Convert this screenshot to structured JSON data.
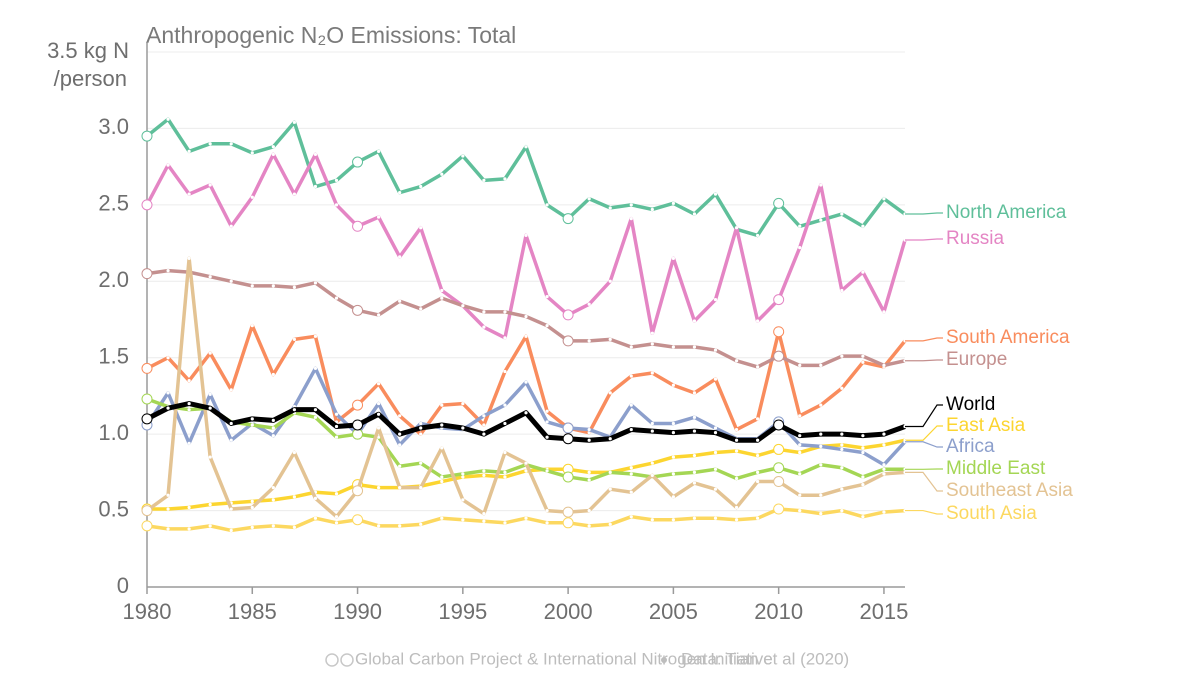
{
  "chart_data": {
    "type": "line",
    "title": "Anthropogenic N₂O Emissions: Total",
    "y_label": "/person",
    "footer_source": "Global Carbon Project & International Nitrogen Initiative",
    "footer_data": "Data: Tian et al (2020)",
    "x": [
      1980,
      1981,
      1982,
      1983,
      1984,
      1985,
      1986,
      1987,
      1988,
      1989,
      1990,
      1991,
      1992,
      1993,
      1994,
      1995,
      1996,
      1997,
      1998,
      1999,
      2000,
      2001,
      2002,
      2003,
      2004,
      2005,
      2006,
      2007,
      2008,
      2009,
      2010,
      2011,
      2012,
      2013,
      2014,
      2015,
      2016
    ],
    "xlim": [
      1980,
      2016
    ],
    "xticks": [
      1980,
      1985,
      1990,
      1995,
      2000,
      2005,
      2010,
      2015
    ],
    "ylim": [
      0,
      3.5
    ],
    "yticks": [
      0,
      0.5,
      {
        "value": 1,
        "label": "1.0"
      },
      1.5,
      {
        "value": 2,
        "label": "2.0"
      },
      2.5,
      {
        "value": 3,
        "label": "3.0"
      },
      {
        "value": 3.5,
        "label": "3.5 kg N"
      }
    ],
    "grid": true,
    "series": [
      {
        "name": "North America",
        "color": "#5fbf9a",
        "values": [
          2.95,
          3.06,
          2.85,
          2.9,
          2.9,
          2.84,
          2.88,
          3.04,
          2.62,
          2.66,
          2.78,
          2.85,
          2.58,
          2.62,
          2.7,
          2.82,
          2.66,
          2.67,
          2.88,
          2.5,
          2.41,
          2.54,
          2.48,
          2.5,
          2.47,
          2.51,
          2.44,
          2.57,
          2.34,
          2.3,
          2.51,
          2.36,
          2.4,
          2.44,
          2.36,
          2.54,
          2.44
        ]
      },
      {
        "name": "Russia",
        "color": "#e485c4",
        "values": [
          2.5,
          2.76,
          2.57,
          2.63,
          2.36,
          2.55,
          2.83,
          2.57,
          2.83,
          2.5,
          2.36,
          2.42,
          2.16,
          2.35,
          1.94,
          1.84,
          1.7,
          1.63,
          2.3,
          1.9,
          1.78,
          1.85,
          2.0,
          2.41,
          1.66,
          2.15,
          1.74,
          1.88,
          2.35,
          1.74,
          1.88,
          2.22,
          2.63,
          1.94,
          2.06,
          1.8,
          2.27
        ]
      },
      {
        "name": "South America",
        "color": "#f98c5d",
        "values": [
          1.43,
          1.5,
          1.35,
          1.53,
          1.29,
          1.71,
          1.39,
          1.62,
          1.64,
          1.08,
          1.19,
          1.33,
          1.12,
          1.0,
          1.19,
          1.2,
          1.06,
          1.41,
          1.64,
          1.15,
          1.04,
          1.01,
          1.27,
          1.38,
          1.4,
          1.32,
          1.27,
          1.36,
          1.03,
          1.1,
          1.67,
          1.12,
          1.19,
          1.3,
          1.47,
          1.44,
          1.61
        ]
      },
      {
        "name": "Europe",
        "color": "#c4908f",
        "values": [
          2.05,
          2.07,
          2.06,
          2.03,
          2.0,
          1.97,
          1.97,
          1.96,
          1.99,
          1.89,
          1.81,
          1.78,
          1.87,
          1.82,
          1.89,
          1.84,
          1.8,
          1.8,
          1.77,
          1.71,
          1.61,
          1.61,
          1.62,
          1.57,
          1.59,
          1.57,
          1.57,
          1.55,
          1.48,
          1.44,
          1.51,
          1.45,
          1.45,
          1.51,
          1.51,
          1.45,
          1.48
        ]
      },
      {
        "name": "World",
        "color": "#000000",
        "values": [
          1.1,
          1.17,
          1.2,
          1.17,
          1.07,
          1.1,
          1.09,
          1.16,
          1.16,
          1.05,
          1.06,
          1.13,
          1.0,
          1.04,
          1.06,
          1.04,
          1.0,
          1.07,
          1.14,
          0.98,
          0.97,
          0.96,
          0.97,
          1.03,
          1.02,
          1.01,
          1.02,
          1.01,
          0.96,
          0.96,
          1.06,
          0.99,
          1.0,
          1.0,
          0.99,
          1.0,
          1.05
        ]
      },
      {
        "name": "East Asia",
        "color": "#fcd530",
        "values": [
          0.51,
          0.51,
          0.52,
          0.54,
          0.55,
          0.56,
          0.57,
          0.59,
          0.62,
          0.61,
          0.67,
          0.65,
          0.65,
          0.66,
          0.69,
          0.72,
          0.73,
          0.72,
          0.76,
          0.77,
          0.77,
          0.75,
          0.75,
          0.78,
          0.81,
          0.85,
          0.86,
          0.88,
          0.89,
          0.86,
          0.9,
          0.88,
          0.92,
          0.93,
          0.91,
          0.93,
          0.96
        ]
      },
      {
        "name": "Africa",
        "color": "#8c9fcc",
        "values": [
          1.06,
          1.27,
          0.94,
          1.26,
          0.96,
          1.07,
          0.99,
          1.18,
          1.43,
          1.13,
          1.0,
          1.2,
          0.93,
          1.07,
          1.04,
          1.03,
          1.12,
          1.19,
          1.34,
          1.08,
          1.04,
          1.03,
          0.98,
          1.19,
          1.07,
          1.07,
          1.11,
          1.04,
          0.97,
          0.97,
          1.08,
          0.93,
          0.92,
          0.9,
          0.88,
          0.8,
          0.95
        ]
      },
      {
        "name": "Middle East",
        "color": "#a4d654",
        "values": [
          1.23,
          1.18,
          1.16,
          1.17,
          1.08,
          1.06,
          1.04,
          1.14,
          1.11,
          0.98,
          1.0,
          0.98,
          0.79,
          0.81,
          0.72,
          0.74,
          0.76,
          0.75,
          0.8,
          0.76,
          0.72,
          0.7,
          0.75,
          0.74,
          0.72,
          0.74,
          0.75,
          0.77,
          0.71,
          0.75,
          0.78,
          0.74,
          0.8,
          0.78,
          0.72,
          0.77,
          0.77
        ]
      },
      {
        "name": "Southeast Asia",
        "color": "#e3c393",
        "values": [
          0.5,
          0.6,
          2.15,
          0.85,
          0.51,
          0.52,
          0.65,
          0.88,
          0.58,
          0.46,
          0.63,
          1.04,
          0.65,
          0.65,
          0.91,
          0.57,
          0.48,
          0.88,
          0.81,
          0.5,
          0.49,
          0.5,
          0.64,
          0.62,
          0.73,
          0.59,
          0.68,
          0.64,
          0.52,
          0.69,
          0.69,
          0.6,
          0.6,
          0.64,
          0.67,
          0.74,
          0.75
        ]
      },
      {
        "name": "South Asia",
        "color": "#fcd860",
        "values": [
          0.4,
          0.38,
          0.38,
          0.4,
          0.37,
          0.39,
          0.4,
          0.39,
          0.45,
          0.42,
          0.44,
          0.4,
          0.4,
          0.41,
          0.45,
          0.44,
          0.43,
          0.42,
          0.45,
          0.42,
          0.42,
          0.4,
          0.41,
          0.46,
          0.44,
          0.44,
          0.45,
          0.45,
          0.44,
          0.45,
          0.51,
          0.5,
          0.48,
          0.5,
          0.46,
          0.49,
          0.5
        ]
      }
    ]
  }
}
